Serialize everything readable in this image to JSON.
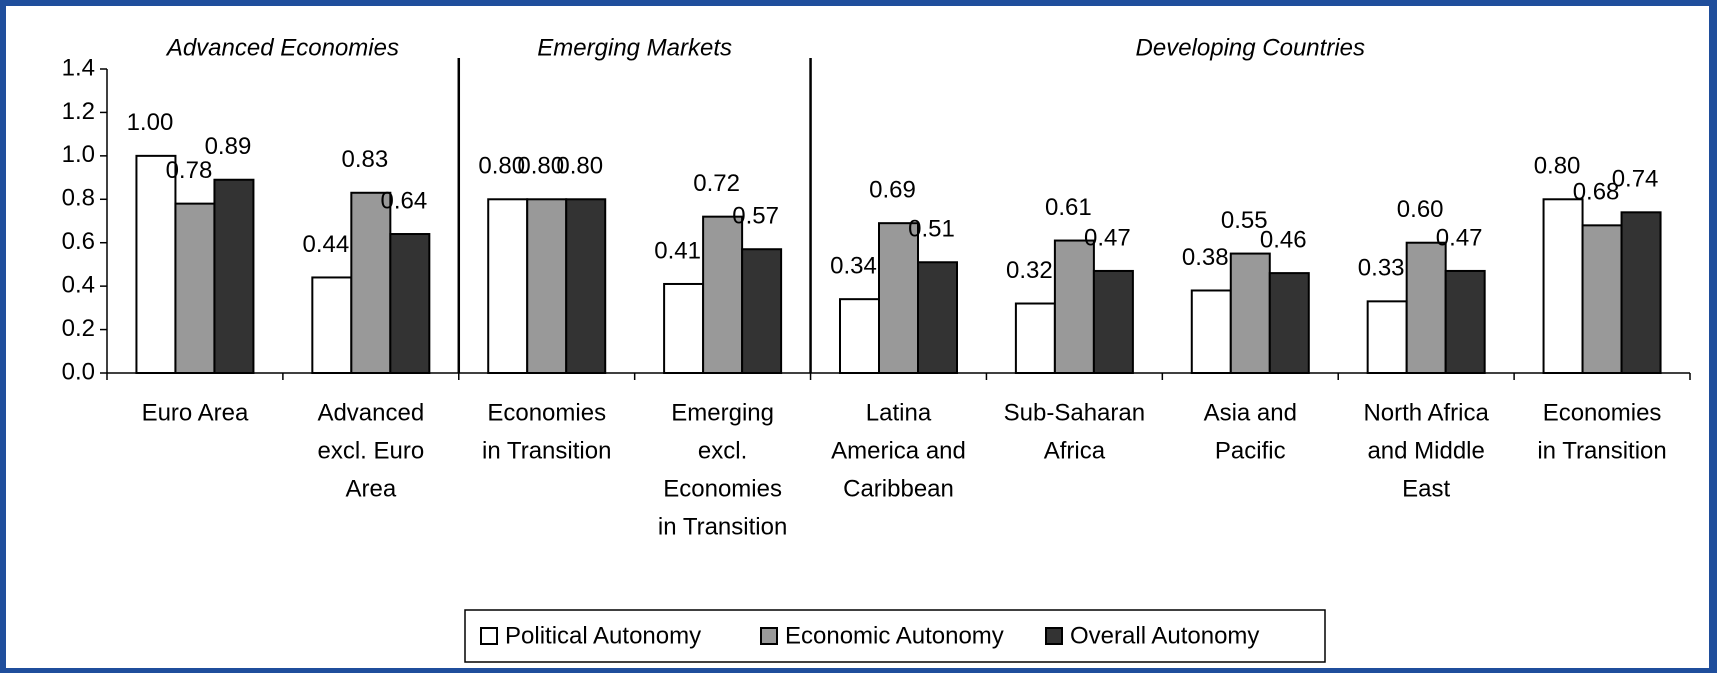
{
  "chart_data": {
    "type": "bar",
    "group_labels": [
      "Advanced Economies",
      "Emerging Markets",
      "Developing Countries"
    ],
    "categories": [
      [
        "Euro Area"
      ],
      [
        "Advanced",
        "excl. Euro",
        "Area"
      ],
      [
        "Economies",
        "in Transition"
      ],
      [
        "Emerging",
        "excl.",
        "Economies",
        "in Transition"
      ],
      [
        "Latina",
        "America and",
        "Caribbean"
      ],
      [
        "Sub-Saharan",
        "Africa"
      ],
      [
        "Asia and",
        "Pacific"
      ],
      [
        "North Africa",
        "and Middle",
        "East"
      ],
      [
        "Economies",
        "in Transition"
      ]
    ],
    "series": [
      {
        "name": "Political Autonomy",
        "color": "#ffffff",
        "values": [
          1.0,
          0.44,
          0.8,
          0.41,
          0.34,
          0.32,
          0.38,
          0.33,
          0.8
        ],
        "value_labels": [
          "1.00",
          "0.44",
          "0.80",
          "0.41",
          "0.34",
          "0.32",
          "0.38",
          "0.33",
          "0.80"
        ]
      },
      {
        "name": "Economic Autonomy",
        "color": "#999999",
        "values": [
          0.78,
          0.83,
          0.8,
          0.72,
          0.69,
          0.61,
          0.55,
          0.6,
          0.68
        ],
        "value_labels": [
          "0.78",
          "0.83",
          "0.80",
          "0.72",
          "0.69",
          "0.61",
          "0.55",
          "0.60",
          "0.68"
        ]
      },
      {
        "name": "Overall Autonomy",
        "color": "#333333",
        "values": [
          0.89,
          0.64,
          0.8,
          0.57,
          0.51,
          0.47,
          0.46,
          0.47,
          0.74
        ],
        "value_labels": [
          "0.89",
          "0.64",
          "0.80",
          "0.57",
          "0.51",
          "0.47",
          "0.46",
          "0.47",
          "0.74"
        ]
      }
    ],
    "ylim": [
      0,
      1.4
    ],
    "yticks": [
      {
        "value": 0,
        "label": "0.0"
      },
      0.2,
      0.4,
      0.6,
      0.8,
      {
        "value": 1,
        "label": "1.0"
      },
      1.2,
      1.4
    ],
    "legend": "bottom"
  }
}
